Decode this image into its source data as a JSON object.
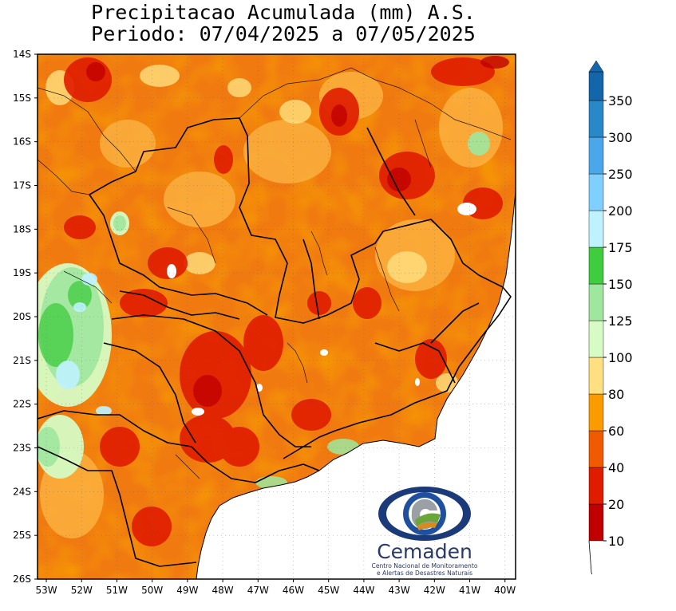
{
  "title": {
    "line1": "Precipitacao Acumulada (mm) A.S.",
    "line2": "Periodo: 07/04/2025 a 07/05/2025"
  },
  "map": {
    "extent": {
      "lon": [
        -53.25,
        -39.7
      ],
      "lat": [
        -26,
        -14
      ]
    },
    "lon_ticks": [
      {
        "value": -53,
        "label": "53W"
      },
      {
        "value": -52,
        "label": "52W"
      },
      {
        "value": -51,
        "label": "51W"
      },
      {
        "value": -50,
        "label": "50W"
      },
      {
        "value": -49,
        "label": "49W"
      },
      {
        "value": -48,
        "label": "48W"
      },
      {
        "value": -47,
        "label": "47W"
      },
      {
        "value": -46,
        "label": "46W"
      },
      {
        "value": -45,
        "label": "45W"
      },
      {
        "value": -44,
        "label": "44W"
      },
      {
        "value": -43,
        "label": "43W"
      },
      {
        "value": -42,
        "label": "42W"
      },
      {
        "value": -41,
        "label": "41W"
      },
      {
        "value": -40,
        "label": "40W"
      }
    ],
    "lat_ticks": [
      {
        "value": -14,
        "label": "14S"
      },
      {
        "value": -15,
        "label": "15S"
      },
      {
        "value": -16,
        "label": "16S"
      },
      {
        "value": -17,
        "label": "17S"
      },
      {
        "value": -18,
        "label": "18S"
      },
      {
        "value": -19,
        "label": "19S"
      },
      {
        "value": -20,
        "label": "20S"
      },
      {
        "value": -21,
        "label": "21S"
      },
      {
        "value": -22,
        "label": "22S"
      },
      {
        "value": -23,
        "label": "23S"
      },
      {
        "value": -24,
        "label": "24S"
      },
      {
        "value": -25,
        "label": "25S"
      },
      {
        "value": -26,
        "label": "26S"
      }
    ],
    "grid": true,
    "colors": {
      "ocean": "#ffffff",
      "border": "#000000"
    }
  },
  "legend": {
    "placement": "right",
    "unit": "mm",
    "bins": [
      {
        "label": "10",
        "color": "#c00000"
      },
      {
        "label": "20",
        "color": "#e01c00"
      },
      {
        "label": "40",
        "color": "#f05a00"
      },
      {
        "label": "60",
        "color": "#fa9c00"
      },
      {
        "label": "80",
        "color": "#ffe080"
      },
      {
        "label": "100",
        "color": "#d6fbc4"
      },
      {
        "label": "125",
        "color": "#9fe79f"
      },
      {
        "label": "150",
        "color": "#3fcc3f"
      },
      {
        "label": "175",
        "color": "#bff2ff"
      },
      {
        "label": "200",
        "color": "#7fd0ff"
      },
      {
        "label": "250",
        "color": "#4aa8ea"
      },
      {
        "label": "300",
        "color": "#2888c8"
      },
      {
        "label": "350",
        "color": "#1466aa"
      }
    ]
  },
  "logo": {
    "name": "Cemaden",
    "subtitle_line1": "Centro Nacional de Monitoramento",
    "subtitle_line2": "e Alertas de Desastres Naturais"
  }
}
